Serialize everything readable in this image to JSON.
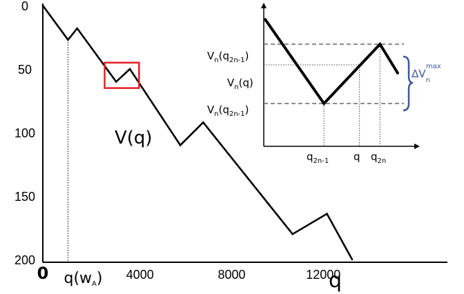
{
  "chart_data": [
    {
      "type": "line",
      "curve_label": "V(q)",
      "xlabel": "q",
      "xlim": [
        0,
        13500
      ],
      "ylim": [
        0,
        200
      ],
      "y_inverted": true,
      "x_ticks": [
        "0",
        "4000",
        "8000",
        "12000"
      ],
      "y_ticks": [
        "0",
        "50",
        "100",
        "150",
        "200"
      ],
      "x_tick_values": [
        0,
        4000,
        8000,
        12000
      ],
      "y_tick_values": [
        0,
        50,
        100,
        150,
        200
      ],
      "marker_label": "q(w",
      "marker_label_sub": "A",
      "marker_label_close": ")",
      "marker_x": 1100,
      "x": [
        0,
        1100,
        1500,
        3200,
        3800,
        6000,
        7000,
        10900,
        12400,
        13500
      ],
      "y": [
        0,
        27,
        18,
        60,
        50,
        110,
        92,
        180,
        164,
        200
      ],
      "highlight_box": {
        "x": [
          2700,
          4200
        ],
        "y": [
          45,
          65
        ]
      }
    },
    {
      "type": "line",
      "inset": true,
      "labels": {
        "vmax_1": "V",
        "vmax_1_sub": "n",
        "vmax_1_arg": "(q",
        "vmax_1_arg_sub": "2n-1",
        "vmax_1_close": ")",
        "vq": "V",
        "vq_sub": "n",
        "vq_arg": "(q)",
        "vmin": "V",
        "vmin_sub": "n",
        "vmin_arg": "(q",
        "vmin_arg_sub": "2n-1",
        "vmin_close": ")",
        "x_q1": "q",
        "x_q1_sub": "2n-1",
        "x_q": "q",
        "x_q2": "q",
        "x_q2_sub": "2n",
        "delta": "ΔV",
        "delta_sub": "n",
        "delta_sup": "max"
      },
      "x": [
        0,
        0.43,
        0.84,
        0.97
      ],
      "y": [
        0.91,
        0.3,
        0.73,
        0.52
      ],
      "level_max": 0.73,
      "level_q": 0.58,
      "level_min": 0.3,
      "q_marker": 0.69
    }
  ],
  "colors": {
    "box": "#e41e26",
    "brace": "#3a55a4",
    "line": "#000000"
  }
}
